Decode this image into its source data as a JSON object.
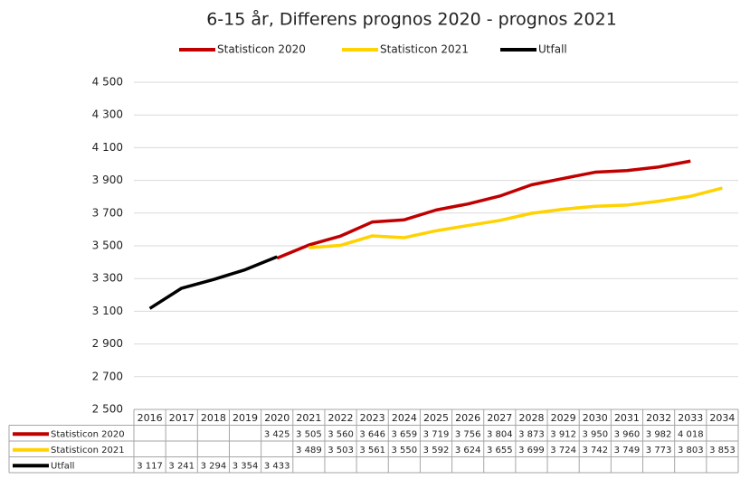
{
  "chart_data": {
    "type": "line",
    "title": "6-15 år, Differens prognos 2020 - prognos 2021",
    "categories": [
      "2016",
      "2017",
      "2018",
      "2019",
      "2020",
      "2021",
      "2022",
      "2023",
      "2024",
      "2025",
      "2026",
      "2027",
      "2028",
      "2029",
      "2030",
      "2031",
      "2032",
      "2033",
      "2034"
    ],
    "series": [
      {
        "name": "Statisticon 2020",
        "color": "#c00000",
        "values": [
          null,
          null,
          null,
          null,
          3425,
          3505,
          3560,
          3646,
          3659,
          3719,
          3756,
          3804,
          3873,
          3912,
          3950,
          3960,
          3982,
          4018,
          null
        ],
        "value_labels": [
          null,
          null,
          null,
          null,
          "3 425",
          "3 505",
          "3 560",
          "3 646",
          "3 659",
          "3 719",
          "3 756",
          "3 804",
          "3 873",
          "3 912",
          "3 950",
          "3 960",
          "3 982",
          "4 018",
          null
        ]
      },
      {
        "name": "Statisticon 2021",
        "color": "#ffd200",
        "values": [
          null,
          null,
          null,
          null,
          null,
          3489,
          3503,
          3561,
          3550,
          3592,
          3624,
          3655,
          3699,
          3724,
          3742,
          3749,
          3773,
          3803,
          3853
        ],
        "value_labels": [
          null,
          null,
          null,
          null,
          null,
          "3 489",
          "3 503",
          "3 561",
          "3 550",
          "3 592",
          "3 624",
          "3 655",
          "3 699",
          "3 724",
          "3 742",
          "3 749",
          "3 773",
          "3 803",
          "3 853"
        ]
      },
      {
        "name": "Utfall",
        "color": "#000000",
        "values": [
          3117,
          3241,
          3294,
          3354,
          3433,
          null,
          null,
          null,
          null,
          null,
          null,
          null,
          null,
          null,
          null,
          null,
          null,
          null,
          null
        ],
        "value_labels": [
          "3 117",
          "3 241",
          "3 294",
          "3 354",
          "3 433",
          null,
          null,
          null,
          null,
          null,
          null,
          null,
          null,
          null,
          null,
          null,
          null,
          null,
          null
        ]
      }
    ],
    "ylim": [
      2500,
      4500
    ],
    "yticks": [
      {
        "value": 2500,
        "label": "2 500"
      },
      {
        "value": 2700,
        "label": "2 700"
      },
      {
        "value": 2900,
        "label": "2 900"
      },
      {
        "value": 3100,
        "label": "3 100"
      },
      {
        "value": 3300,
        "label": "3 300"
      },
      {
        "value": 3500,
        "label": "3 500"
      },
      {
        "value": 3700,
        "label": "3 700"
      },
      {
        "value": 3900,
        "label": "3 900"
      },
      {
        "value": 4100,
        "label": "4 100"
      },
      {
        "value": 4300,
        "label": "4 300"
      },
      {
        "value": 4500,
        "label": "4 500"
      }
    ],
    "grid": true,
    "legend": "top"
  }
}
